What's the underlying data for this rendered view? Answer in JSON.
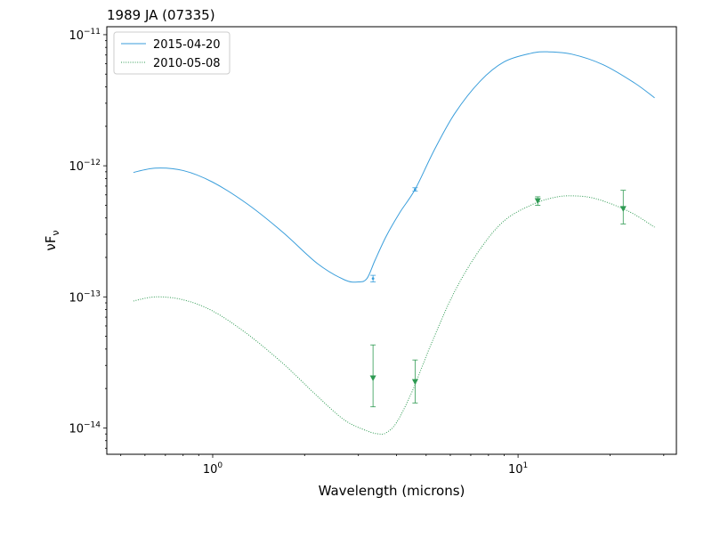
{
  "chart_data": {
    "type": "line",
    "title": "1989 JA (07335)",
    "xlabel": "Wavelength (microns)",
    "ylabel": "νF",
    "ylabel_subscript": "ν",
    "xscale": "log",
    "yscale": "log",
    "xlim": [
      0.45,
      33
    ],
    "ylim": [
      6.3e-15,
      1.15e-11
    ],
    "grid": false,
    "legend_position": "top-left",
    "x_ticks": [
      {
        "value": 1,
        "base": "10",
        "exp": "0"
      },
      {
        "value": 10,
        "base": "10",
        "exp": "1"
      }
    ],
    "y_ticks": [
      {
        "value": 1e-14,
        "base": "10",
        "exp": "−14"
      },
      {
        "value": 1e-13,
        "base": "10",
        "exp": "−13"
      },
      {
        "value": 1e-12,
        "base": "10",
        "exp": "−12"
      },
      {
        "value": 1e-11,
        "base": "10",
        "exp": "−11"
      }
    ],
    "series": [
      {
        "name": "2015-04-20",
        "color": "#3a9edb",
        "style": "solid",
        "x": [
          0.55,
          0.65,
          0.8,
          1.0,
          1.3,
          1.7,
          2.2,
          2.7,
          3.0,
          3.2,
          3.4,
          3.7,
          4.1,
          4.6,
          5.3,
          6.2,
          7.5,
          9.0,
          11.0,
          12.5,
          15.0,
          19.0,
          24.0,
          28.0
        ],
        "y": [
          8.9e-13,
          9.6e-13,
          9.2e-13,
          7.5e-13,
          5.1e-13,
          3.1e-13,
          1.8e-13,
          1.35e-13,
          1.3e-13,
          1.38e-13,
          1.9e-13,
          2.9e-13,
          4.4e-13,
          6.6e-13,
          1.3e-12,
          2.5e-12,
          4.4e-12,
          6.2e-12,
          7.2e-12,
          7.4e-12,
          7.1e-12,
          5.9e-12,
          4.3e-12,
          3.3e-12
        ]
      },
      {
        "name": "2010-05-08",
        "color": "#2e9a52",
        "style": "dotted",
        "x": [
          0.55,
          0.65,
          0.8,
          1.0,
          1.3,
          1.7,
          2.2,
          2.7,
          3.2,
          3.5,
          3.7,
          4.0,
          4.5,
          5.2,
          6.2,
          7.5,
          9.0,
          11.0,
          13.0,
          15.0,
          18.0,
          23.0,
          28.0
        ],
        "y": [
          9.3e-14,
          1e-13,
          9.5e-14,
          7.8e-14,
          5.2e-14,
          3.1e-14,
          1.75e-14,
          1.15e-14,
          9.5e-15,
          9e-15,
          9.2e-15,
          1.1e-14,
          1.9e-14,
          4.4e-14,
          1.1e-13,
          2.3e-13,
          3.8e-13,
          5e-13,
          5.7e-13,
          5.9e-13,
          5.6e-13,
          4.5e-13,
          3.4e-13
        ]
      }
    ],
    "errorbars": [
      {
        "series": "2015-04-20",
        "x": 3.35,
        "y": 1.38e-13,
        "ylow": 1.3e-13,
        "yhigh": 1.46e-13,
        "marker": "dot",
        "color": "#3a9edb"
      },
      {
        "series": "2015-04-20",
        "x": 4.6,
        "y": 6.6e-13,
        "ylow": 6.4e-13,
        "yhigh": 6.8e-13,
        "marker": "dot",
        "color": "#3a9edb"
      },
      {
        "series": "2010-05-08",
        "x": 3.35,
        "y": 2.4e-14,
        "ylow": 1.45e-14,
        "yhigh": 4.3e-14,
        "marker": "triangle-down",
        "color": "#2e9a52"
      },
      {
        "series": "2010-05-08",
        "x": 4.6,
        "y": 2.25e-14,
        "ylow": 1.55e-14,
        "yhigh": 3.3e-14,
        "marker": "triangle-down",
        "color": "#2e9a52"
      },
      {
        "series": "2010-05-08",
        "x": 11.6,
        "y": 5.4e-13,
        "ylow": 5e-13,
        "yhigh": 5.8e-13,
        "marker": "triangle-down",
        "color": "#2e9a52"
      },
      {
        "series": "2010-05-08",
        "x": 22.1,
        "y": 4.7e-13,
        "ylow": 3.6e-13,
        "yhigh": 6.5e-13,
        "marker": "triangle-down",
        "color": "#2e9a52"
      }
    ]
  }
}
